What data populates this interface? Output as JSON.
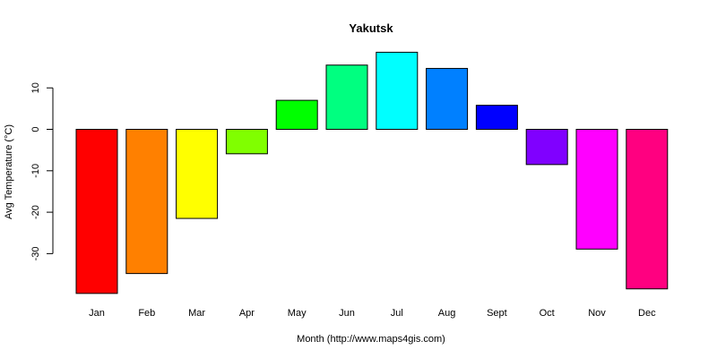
{
  "chart_data": {
    "type": "bar",
    "title": "Yakutsk",
    "xlabel": "Month (http://www.maps4gis.com)",
    "ylabel": "Avg Temperature (°C)",
    "categories": [
      "Jan",
      "Feb",
      "Mar",
      "Apr",
      "May",
      "Jun",
      "Jul",
      "Aug",
      "Sept",
      "Oct",
      "Nov",
      "Dec"
    ],
    "values": [
      -39.6,
      -34.8,
      -21.5,
      -5.9,
      7.0,
      15.5,
      18.6,
      14.7,
      5.8,
      -8.5,
      -28.9,
      -38.5
    ],
    "colors": [
      "#FF0000",
      "#FF8000",
      "#FFFF00",
      "#80FF00",
      "#00FF00",
      "#00FF80",
      "#00FFFF",
      "#0080FF",
      "#0000FF",
      "#8000FF",
      "#FF00FF",
      "#FF0080"
    ],
    "yticks": [
      10,
      0,
      -10,
      -20,
      -30
    ],
    "ylim": [
      -40,
      20
    ],
    "grid": false,
    "legend": "none"
  }
}
